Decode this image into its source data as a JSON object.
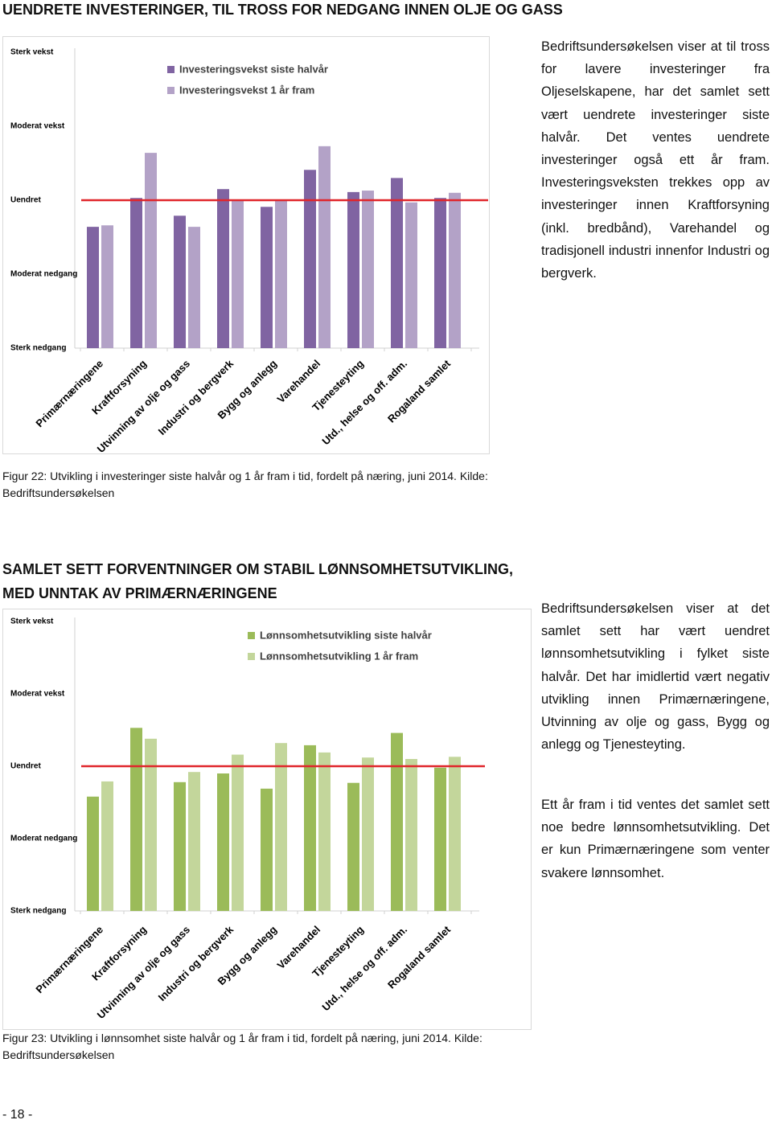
{
  "sections": [
    {
      "heading": "UENDRETE INVESTERINGER, TIL TROSS FOR NEDGANG INNEN OLJE OG GASS",
      "paragraphs": [
        "Bedriftsundersøkelsen viser at til tross for lavere investeringer fra Oljeselskapene, har det samlet sett vært uendrete investeringer siste halvår. Det ventes uendrete investeringer også ett år fram. Investeringsveksten trekkes opp av investeringer innen Kraftforsyning (inkl. bredbånd), Varehandel og tradisjonell industri innenfor Industri og bergverk."
      ],
      "caption": "Figur 22: Utvikling i investeringer siste halvår og 1 år fram i tid, fordelt på næring, juni 2014. Kilde: Bedriftsundersøkelsen"
    },
    {
      "heading": "SAMLET SETT FORVENTNINGER OM STABIL LØNNSOMHETSUTVIKLING, MED UNNTAK AV PRIMÆRNÆRINGENE",
      "paragraphs": [
        "Bedriftsundersøkelsen viser at det samlet sett har vært uendret lønnsomhetsutvikling i fylket siste halvår. Det har imidlertid vært negativ utvikling innen Primærnæringene, Utvinning av olje og gass, Bygg og anlegg og Tjenesteyting.",
        "Ett år fram i tid ventes det samlet sett noe bedre lønnsomhetsutvikling. Det er kun Primærnæringene som venter svakere lønnsomhet."
      ],
      "caption": "Figur 23: Utvikling i lønnsomhet siste halvår og 1 år fram i tid, fordelt på næring, juni 2014. Kilde: Bedriftsundersøkelsen"
    }
  ],
  "page_number": "- 18 -",
  "chart_data": [
    {
      "type": "bar",
      "categories": [
        "Primærnæringene",
        "Kraftforsyning",
        "Utvinning av olje og gass",
        "Industri og bergverk",
        "Bygg og anlegg",
        "Varehandel",
        "Tjenesteyting",
        "Utd., helse og off. adm.",
        "Rogaland samlet"
      ],
      "series": [
        {
          "name": "Investeringsvekst siste halvår",
          "color": "#8064a2",
          "values": [
            -0.36,
            0.03,
            -0.21,
            0.15,
            -0.09,
            0.41,
            0.11,
            0.3,
            0.03
          ]
        },
        {
          "name": "Investeringsvekst 1 år fram",
          "color": "#b3a2c7",
          "values": [
            -0.34,
            0.64,
            -0.36,
            0.01,
            0.01,
            0.73,
            0.13,
            -0.03,
            0.1
          ]
        }
      ],
      "ylim": [
        -2,
        2
      ],
      "yticks": [
        {
          "value": -2,
          "label": "Sterk nedgang"
        },
        {
          "value": -1,
          "label": "Moderat nedgang"
        },
        {
          "value": 0,
          "label": "Uendret"
        },
        {
          "value": 1,
          "label": "Moderat vekst"
        },
        {
          "value": 2,
          "label": "Sterk vekst"
        }
      ],
      "reference_line": {
        "value": 0,
        "color": "#e0262b"
      }
    },
    {
      "type": "bar",
      "categories": [
        "Primærnæringene",
        "Kraftforsyning",
        "Utvinning av olje og gass",
        "Industri og bergverk",
        "Bygg og anlegg",
        "Varehandel",
        "Tjenesteyting",
        "Utd., helse og off. adm.",
        "Rogaland samlet"
      ],
      "series": [
        {
          "name": "Lønnsomhetsutvikling siste halvår",
          "color": "#9bbb59",
          "values": [
            -0.42,
            0.53,
            -0.22,
            -0.1,
            -0.31,
            0.29,
            -0.23,
            0.46,
            -0.02
          ]
        },
        {
          "name": "Lønnsomhetsutvikling 1 år fram",
          "color": "#c3d69b",
          "values": [
            -0.21,
            0.38,
            -0.08,
            0.16,
            0.32,
            0.19,
            0.12,
            0.1,
            0.13
          ]
        }
      ],
      "ylim": [
        -2,
        2
      ],
      "yticks": [
        {
          "value": -2,
          "label": "Sterk nedgang"
        },
        {
          "value": -1,
          "label": "Moderat nedgang"
        },
        {
          "value": 0,
          "label": "Uendret"
        },
        {
          "value": 1,
          "label": "Moderat vekst"
        },
        {
          "value": 2,
          "label": "Sterk vekst"
        }
      ],
      "reference_line": {
        "value": 0,
        "color": "#e0262b"
      }
    }
  ]
}
